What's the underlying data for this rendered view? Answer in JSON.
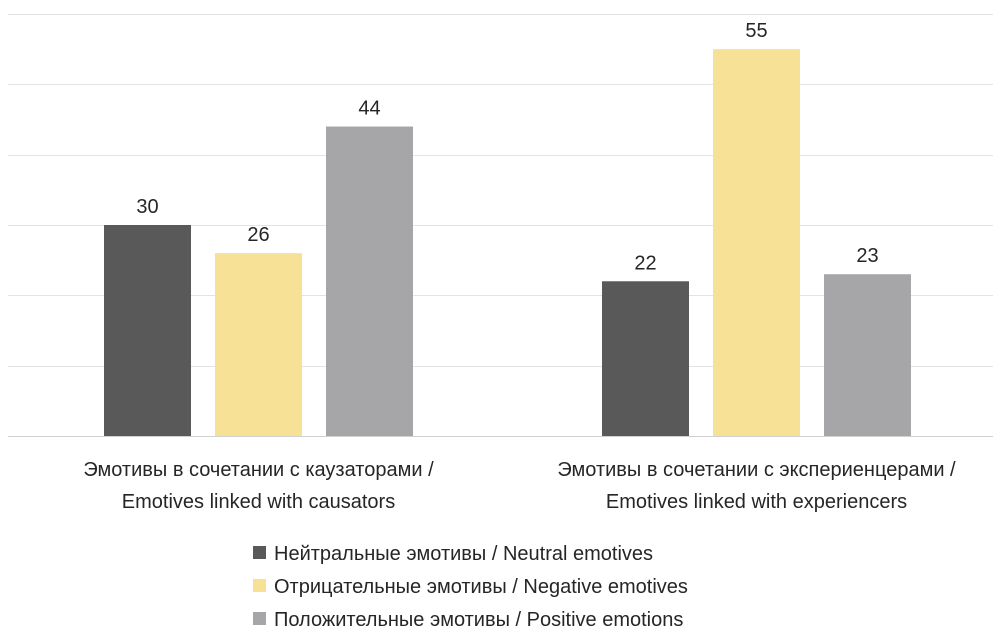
{
  "chart_data": {
    "type": "bar",
    "categories": [
      [
        "Эмотивы в сочетании с каузаторами /",
        "Emotives linked with causators"
      ],
      [
        "Эмотивы в сочетании с экспериенцерами /",
        "Emotives linked with experiencers"
      ]
    ],
    "series": [
      {
        "name": "Нейтральные эмотивы / Neutral emotives",
        "color": "#595959",
        "values": [
          30,
          22
        ]
      },
      {
        "name": "Отрицательные эмотивы / Negative emotives",
        "color": "#f7e196",
        "values": [
          26,
          55
        ]
      },
      {
        "name": "Положительные эмотивы / Positive emotions",
        "color": "#a6a6a8",
        "values": [
          44,
          23
        ]
      }
    ],
    "ylim": [
      0,
      60
    ],
    "grid": true,
    "legend_position": "bottom",
    "data_labels": true,
    "axis_tick_labels": false
  }
}
